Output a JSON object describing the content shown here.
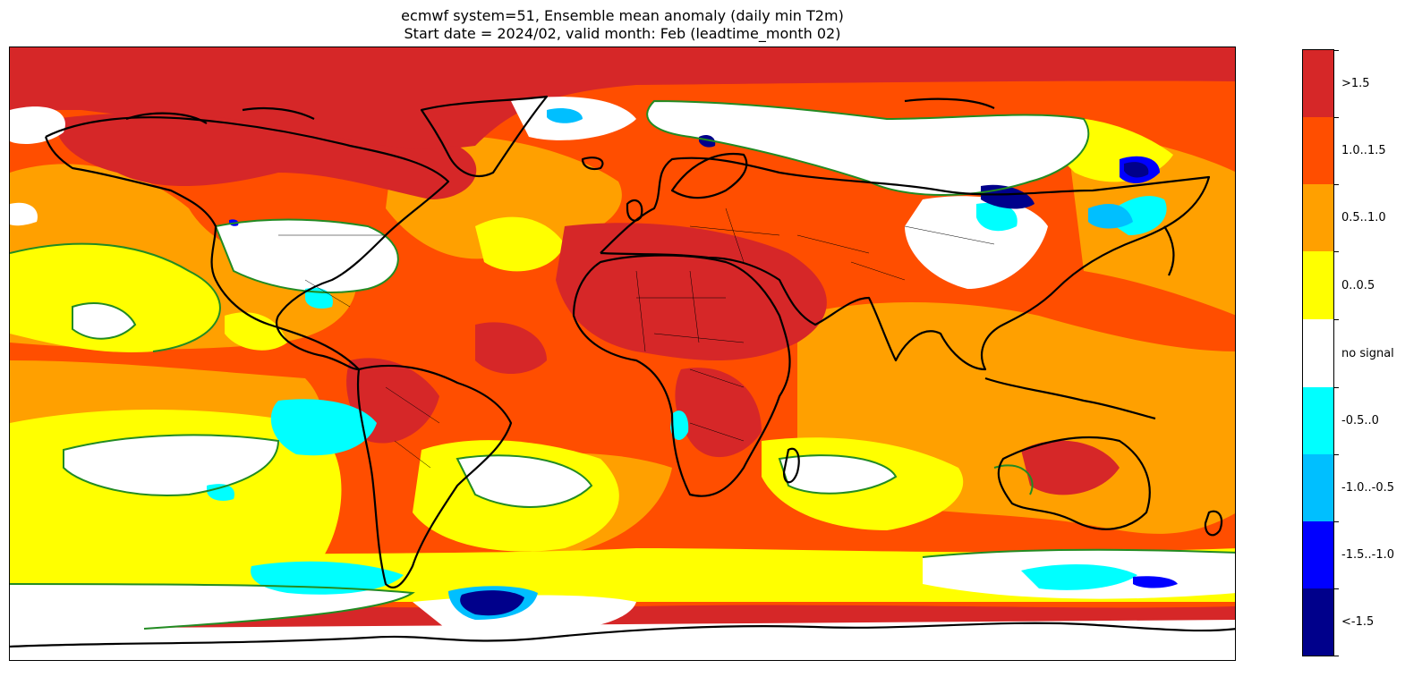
{
  "title": {
    "line1": "ecmwf system=51, Ensemble mean anomaly (daily min T2m)",
    "line2": "Start date = 2024/02, valid month: Feb (leadtime_month 02)"
  },
  "legend": {
    "categories": [
      {
        "label": ">1.5",
        "color": "#d62728"
      },
      {
        "label": "1.0..1.5",
        "color": "#ff4e00"
      },
      {
        "label": "0.5..1.0",
        "color": "#ffa000"
      },
      {
        "label": "0..0.5",
        "color": "#ffff00"
      },
      {
        "label": "no signal",
        "color": "#ffffff"
      },
      {
        "label": "-0.5..0",
        "color": "#00ffff"
      },
      {
        "label": "-1.0..-0.5",
        "color": "#00bfff"
      },
      {
        "label": "-1.5..-1.0",
        "color": "#0000ff"
      },
      {
        "label": "<-1.5",
        "color": "#00008b"
      }
    ]
  },
  "colors": {
    "coastline": "#000000",
    "significance_contour": "#228b22"
  }
}
